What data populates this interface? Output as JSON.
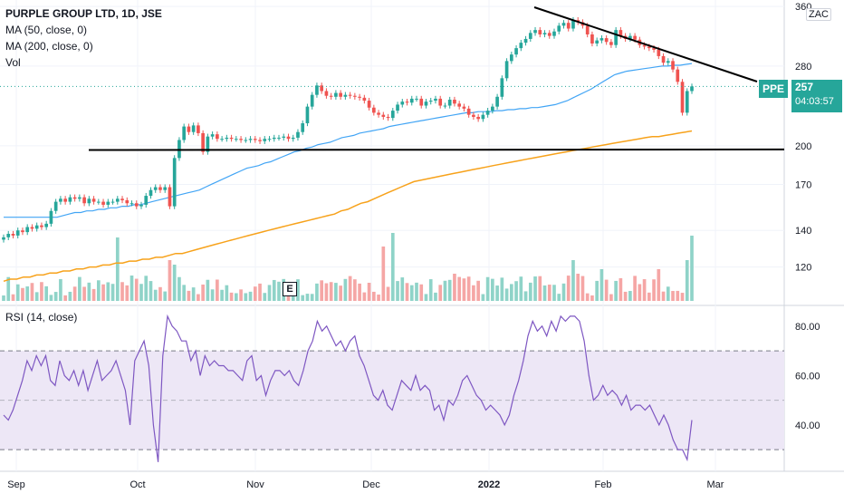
{
  "header": {
    "title": "PURPLE GROUP LTD, 1D, JSE",
    "indicators": [
      "MA (50, close, 0)",
      "MA (200, close, 0)",
      "Vol"
    ],
    "currency": "ZAC"
  },
  "price_badge": {
    "symbol": "PPE",
    "price": "257",
    "countdown": "04:03:57"
  },
  "rsi_label": "RSI (14, close)",
  "event_marker": "E",
  "colors": {
    "up": "#26a69a",
    "down": "#ef5350",
    "ma50": "#42a5f5",
    "ma200": "#f7a21b",
    "rsi_line": "#7e57c2",
    "rsi_band": "#ede7f6",
    "grid": "#f0f3fa",
    "axis_text": "#131722",
    "vol_up": "#8fd3c8",
    "vol_down": "#f5a6a5"
  },
  "chart_data": [
    {
      "type": "candlestick",
      "title": "PURPLE GROUP LTD, 1D, JSE",
      "y_axis": {
        "scale": "log",
        "ticks": [
          "120",
          "140",
          "170",
          "200",
          "280",
          "360"
        ],
        "range": [
          104,
          370
        ]
      },
      "x_axis": {
        "ticks": [
          "Sep",
          "Oct",
          "Nov",
          "Dec",
          "2022",
          "Feb",
          "Mar"
        ]
      },
      "close": [
        136,
        138,
        137,
        140,
        139,
        142,
        141,
        143,
        142,
        144,
        152,
        158,
        160,
        158,
        161,
        160,
        161,
        157,
        160,
        158,
        158,
        156,
        158,
        158,
        160,
        159,
        157,
        157,
        155,
        156,
        162,
        166,
        168,
        166,
        168,
        155,
        190,
        205,
        217,
        212,
        218,
        211,
        195,
        208,
        210,
        206,
        206,
        207,
        206,
        206,
        205,
        205,
        206,
        205,
        204,
        206,
        206,
        207,
        207,
        208,
        206,
        207,
        212,
        220,
        236,
        248,
        258,
        252,
        247,
        246,
        250,
        246,
        248,
        247,
        246,
        245,
        242,
        235,
        230,
        228,
        226,
        225,
        232,
        238,
        241,
        240,
        244,
        244,
        237,
        241,
        242,
        244,
        237,
        237,
        243,
        239,
        236,
        234,
        228,
        226,
        224,
        228,
        232,
        236,
        246,
        266,
        286,
        294,
        302,
        309,
        314,
        322,
        326,
        320,
        322,
        318,
        324,
        332,
        336,
        328,
        340,
        337,
        332,
        320,
        308,
        312,
        315,
        310,
        306,
        326,
        318,
        314,
        318,
        313,
        306,
        304,
        302,
        300,
        292,
        284,
        286,
        276,
        262,
        230,
        252,
        257
      ],
      "ma50": [
        148,
        148,
        148,
        148,
        148,
        148,
        148,
        148,
        148,
        148,
        149,
        150,
        151,
        151,
        152,
        152,
        153,
        153,
        154,
        154,
        155,
        155,
        156,
        156,
        157,
        158,
        159,
        160,
        161,
        162,
        163,
        164,
        165,
        166,
        168,
        170,
        172,
        174,
        176,
        178,
        180,
        182,
        183,
        184,
        186,
        187,
        189,
        191,
        193,
        195,
        196,
        198,
        199,
        201,
        202,
        203,
        205,
        207,
        208,
        209,
        211,
        212,
        213,
        214,
        215,
        217,
        218,
        219,
        220,
        221,
        222,
        223,
        224,
        225,
        226,
        227,
        228,
        229,
        230,
        230,
        231,
        231,
        231,
        232,
        232,
        233,
        233,
        234,
        234,
        235,
        235,
        236,
        237,
        238,
        240,
        242,
        245,
        248,
        251,
        254,
        258,
        262,
        266,
        270,
        272,
        274,
        275,
        276,
        277,
        278,
        279,
        280,
        280,
        281,
        281,
        282,
        283
      ],
      "ma200": [
        113,
        114,
        114,
        115,
        115,
        116,
        116,
        117,
        117,
        118,
        118,
        119,
        119,
        120,
        120,
        121,
        121,
        122,
        122,
        123,
        123,
        124,
        124,
        125,
        125,
        126,
        127,
        127,
        128,
        129,
        130,
        131,
        132,
        133,
        134,
        135,
        136,
        137,
        138,
        139,
        140,
        141,
        142,
        143,
        144,
        145,
        146,
        147,
        148,
        149,
        150,
        152,
        153,
        155,
        157,
        158,
        160,
        162,
        164,
        166,
        168,
        170,
        172,
        173,
        174,
        175,
        176,
        177,
        178,
        179,
        180,
        181,
        182,
        183,
        184,
        185,
        186,
        187,
        188,
        189,
        190,
        191,
        192,
        193,
        194,
        195,
        196,
        197,
        198,
        199,
        200,
        201,
        202,
        203,
        204,
        205,
        206,
        207,
        208,
        208,
        209,
        210,
        211,
        212,
        213
      ],
      "annotations": {
        "support_line": [
          [
            0,
            196
          ],
          [
            1,
            196
          ]
        ],
        "resistance_line": [
          "descending trendline from Jan 2022 high"
        ]
      }
    },
    {
      "type": "line",
      "title": "RSI (14, close)",
      "y_axis": {
        "ticks": [
          "40.00",
          "60.00",
          "80.00"
        ],
        "range": [
          22,
          88
        ]
      },
      "band": [
        30,
        70
      ],
      "midline": 50,
      "values": [
        44,
        42,
        46,
        52,
        58,
        66,
        62,
        68,
        64,
        68,
        58,
        56,
        66,
        60,
        58,
        62,
        56,
        62,
        54,
        60,
        66,
        58,
        60,
        62,
        66,
        60,
        54,
        40,
        66,
        70,
        74,
        64,
        40,
        25,
        68,
        84,
        80,
        78,
        74,
        74,
        66,
        70,
        60,
        68,
        64,
        66,
        64,
        64,
        62,
        62,
        60,
        58,
        66,
        68,
        58,
        60,
        52,
        58,
        62,
        62,
        60,
        62,
        58,
        56,
        62,
        70,
        74,
        82,
        78,
        80,
        76,
        72,
        74,
        70,
        74,
        76,
        68,
        64,
        58,
        52,
        50,
        54,
        48,
        46,
        52,
        58,
        56,
        54,
        60,
        54,
        56,
        54,
        46,
        48,
        42,
        50,
        48,
        52,
        58,
        60,
        56,
        52,
        50,
        46,
        48,
        46,
        44,
        40,
        44,
        52,
        58,
        66,
        76,
        82,
        78,
        80,
        76,
        82,
        78,
        84,
        82,
        84,
        84,
        82,
        74,
        60,
        50,
        52,
        56,
        52,
        54,
        52,
        48,
        52,
        46,
        48,
        48,
        46,
        48,
        44,
        40,
        44,
        40,
        34,
        30,
        30,
        26,
        42
      ],
      "x_axis": {
        "ticks": [
          "Sep",
          "Oct",
          "Nov",
          "Dec",
          "2022",
          "Feb",
          "Mar"
        ]
      }
    }
  ]
}
